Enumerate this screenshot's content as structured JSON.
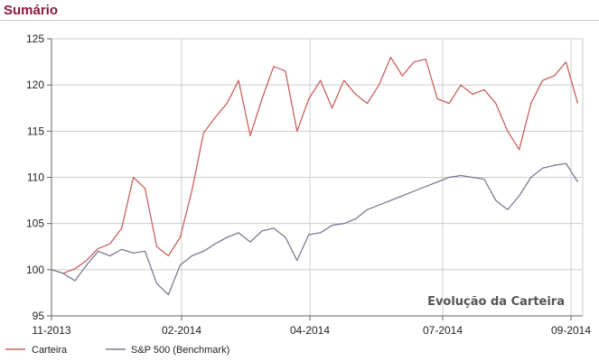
{
  "header": {
    "title": "Sumário"
  },
  "colors": {
    "title": "#8b1a3c",
    "carteira": "#c9605e",
    "benchmark": "#7a7a96",
    "grid": "#cccccc"
  },
  "chart_data": {
    "type": "line",
    "title": "Evolução da Carteira",
    "xlabel": "",
    "ylabel": "",
    "xlim": [
      "2013-11-01",
      "2014-09-15"
    ],
    "ylim": [
      95,
      125
    ],
    "yticks": [
      95,
      100,
      105,
      110,
      115,
      120,
      125
    ],
    "xticks": [
      "11-2013",
      "02-2014",
      "04-2014",
      "07-2014",
      "09-2014"
    ],
    "grid": true,
    "legend_position": "bottom-left",
    "series": [
      {
        "name": "Carteira",
        "x": [
          "2013-11-01",
          "2013-11-08",
          "2013-11-15",
          "2013-11-22",
          "2013-11-29",
          "2013-12-06",
          "2013-12-13",
          "2013-12-20",
          "2013-12-27",
          "2014-01-03",
          "2014-01-10",
          "2014-01-17",
          "2014-01-24",
          "2014-01-31",
          "2014-02-07",
          "2014-02-14",
          "2014-02-21",
          "2014-02-28",
          "2014-03-07",
          "2014-03-14",
          "2014-03-21",
          "2014-03-28",
          "2014-04-04",
          "2014-04-11",
          "2014-04-18",
          "2014-04-25",
          "2014-05-02",
          "2014-05-09",
          "2014-05-16",
          "2014-05-23",
          "2014-05-30",
          "2014-06-06",
          "2014-06-13",
          "2014-06-20",
          "2014-06-27",
          "2014-07-04",
          "2014-07-11",
          "2014-07-18",
          "2014-07-25",
          "2014-08-01",
          "2014-08-08",
          "2014-08-15",
          "2014-08-22",
          "2014-08-29",
          "2014-09-05",
          "2014-09-12"
        ],
        "values": [
          100.0,
          99.6,
          100.1,
          101.0,
          102.3,
          102.8,
          104.5,
          110.0,
          108.8,
          102.5,
          101.5,
          103.5,
          108.5,
          114.8,
          116.5,
          118.0,
          120.5,
          114.5,
          118.5,
          122.0,
          121.5,
          115.0,
          118.5,
          120.5,
          117.5,
          120.5,
          119.0,
          118.0,
          120.0,
          123.0,
          121.0,
          122.5,
          122.8,
          118.5,
          118.0,
          120.0,
          119.0,
          119.5,
          118.0,
          115.0,
          113.0,
          118.0,
          120.5,
          121.0,
          122.5,
          118.0
        ]
      },
      {
        "name": "S&P 500 (Benchmark)",
        "x": [
          "2013-11-01",
          "2013-11-08",
          "2013-11-15",
          "2013-11-22",
          "2013-11-29",
          "2013-12-06",
          "2013-12-13",
          "2013-12-20",
          "2013-12-27",
          "2014-01-03",
          "2014-01-10",
          "2014-01-17",
          "2014-01-24",
          "2014-01-31",
          "2014-02-07",
          "2014-02-14",
          "2014-02-21",
          "2014-02-28",
          "2014-03-07",
          "2014-03-14",
          "2014-03-21",
          "2014-03-28",
          "2014-04-04",
          "2014-04-11",
          "2014-04-18",
          "2014-04-25",
          "2014-05-02",
          "2014-05-09",
          "2014-05-16",
          "2014-05-23",
          "2014-05-30",
          "2014-06-06",
          "2014-06-13",
          "2014-06-20",
          "2014-06-27",
          "2014-07-04",
          "2014-07-11",
          "2014-07-18",
          "2014-07-25",
          "2014-08-01",
          "2014-08-08",
          "2014-08-15",
          "2014-08-22",
          "2014-08-29",
          "2014-09-05",
          "2014-09-12"
        ],
        "values": [
          100.0,
          99.6,
          98.8,
          100.5,
          102.0,
          101.5,
          102.2,
          101.8,
          102.0,
          98.5,
          97.3,
          100.5,
          101.5,
          102.0,
          102.8,
          103.5,
          104.0,
          103.0,
          104.2,
          104.5,
          103.5,
          101.0,
          103.8,
          104.0,
          104.8,
          105.0,
          105.5,
          106.5,
          107.0,
          107.5,
          108.0,
          108.5,
          109.0,
          109.5,
          110.0,
          110.2,
          110.0,
          109.8,
          107.5,
          106.5,
          108.0,
          110.0,
          111.0,
          111.3,
          111.5,
          109.5
        ]
      }
    ]
  }
}
